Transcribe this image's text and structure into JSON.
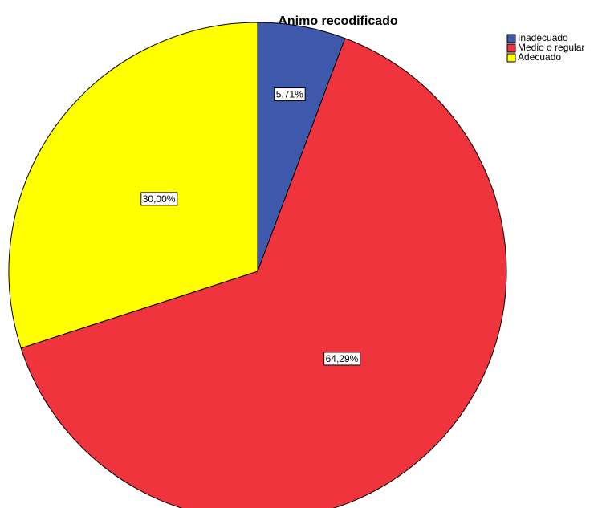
{
  "chart_data": {
    "type": "pie",
    "title": "Animo recodificado",
    "categories": [
      "Inadecuado",
      "Medio o regular",
      "Adecuado"
    ],
    "values": [
      5.71,
      64.29,
      30.0
    ],
    "value_labels": [
      "5,71%",
      "64,29%",
      "30,00%"
    ],
    "colors": [
      "#3e58ac",
      "#ef343d",
      "#ffff00"
    ],
    "legend": "top-right"
  }
}
